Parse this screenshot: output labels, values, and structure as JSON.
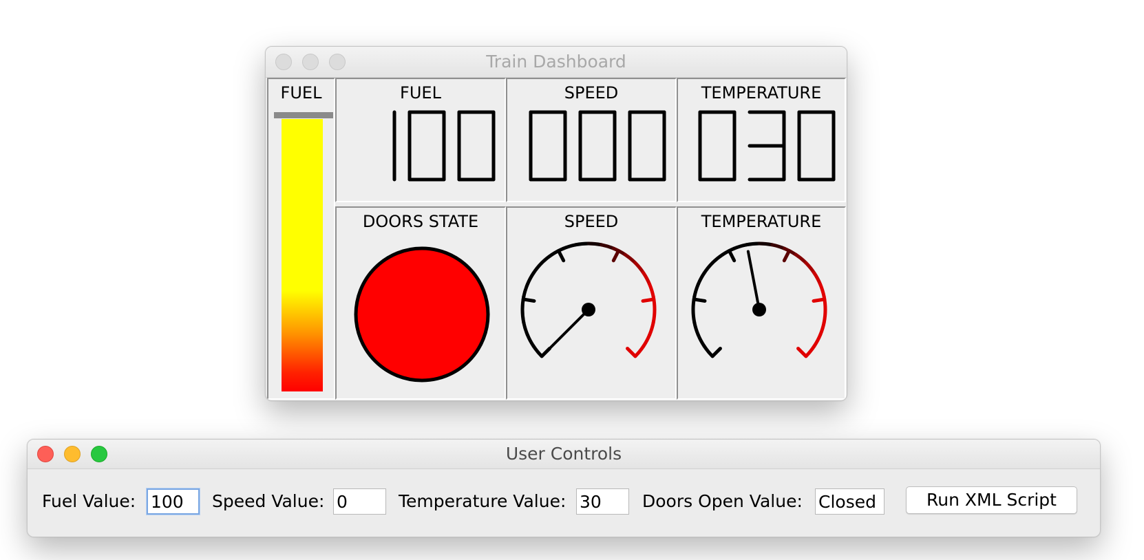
{
  "dashboard": {
    "title": "Train Dashboard",
    "fuel_bar": {
      "label": "FUEL",
      "level_percent": 100,
      "colors": [
        "#ffff00",
        "#ff9900",
        "#ff0000"
      ]
    },
    "displays": [
      {
        "label": "FUEL",
        "digits": "100"
      },
      {
        "label": "SPEED",
        "digits": "000"
      },
      {
        "label": "TEMPERATURE",
        "digits": "030"
      }
    ],
    "doors": {
      "label": "DOORS STATE",
      "color": "#ff0000"
    },
    "gauges": [
      {
        "label": "SPEED",
        "fraction": 0.0
      },
      {
        "label": "TEMPERATURE",
        "fraction": 0.46
      }
    ],
    "gauge_colors": {
      "cold": "#000000",
      "hot": "#e00000"
    }
  },
  "controls": {
    "title": "User Controls",
    "fuel": {
      "label": "Fuel Value:",
      "value": "100"
    },
    "speed": {
      "label": "Speed Value:",
      "value": "0"
    },
    "temperature": {
      "label": "Temperature Value:",
      "value": "30"
    },
    "doors": {
      "label": "Doors Open Value:",
      "value": "Closed"
    },
    "run_button": "Run XML Script"
  }
}
